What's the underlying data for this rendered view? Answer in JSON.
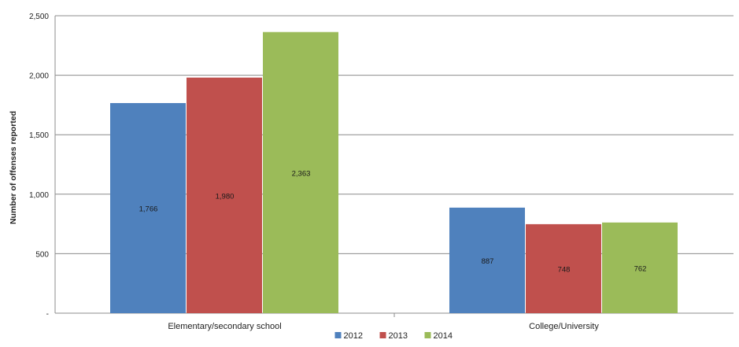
{
  "chart_data": {
    "type": "bar",
    "title": "",
    "xlabel": "",
    "ylabel": "Number of offenses reported",
    "categories": [
      "Elementary/secondary school",
      "College/University"
    ],
    "series": [
      {
        "name": "2012",
        "values": [
          1766,
          887
        ],
        "labels": [
          "1,766",
          "887"
        ],
        "color": "#4f81bd"
      },
      {
        "name": "2013",
        "values": [
          1980,
          748
        ],
        "labels": [
          "1,980",
          "748"
        ],
        "color": "#c0504d"
      },
      {
        "name": "2014",
        "values": [
          2363,
          762
        ],
        "labels": [
          "2,363",
          "762"
        ],
        "color": "#9bbb59"
      }
    ],
    "ylim": [
      0,
      2500
    ],
    "yticks": [
      0,
      500,
      1000,
      1500,
      2000,
      2500
    ],
    "ytick_labels": [
      "-",
      "500",
      "1,000",
      "1,500",
      "2,000",
      "2,500"
    ],
    "grid": true,
    "legend_position": "bottom"
  }
}
